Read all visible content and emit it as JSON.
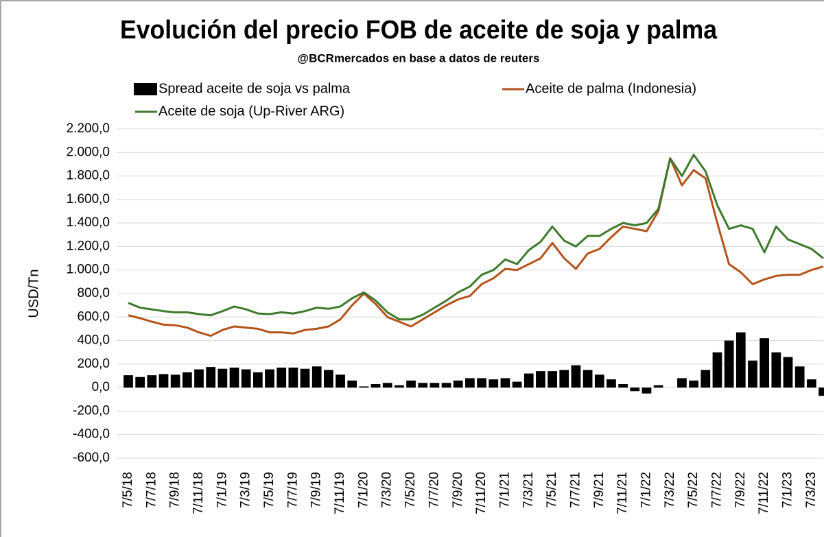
{
  "chart_data": {
    "type": "combo",
    "title": "Evolución del precio FOB de aceite de soja y palma",
    "subtitle": "@BCRmercados  en base a datos de reuters",
    "ylabel": "USD/Tn",
    "categories": [
      "7/5/18",
      null,
      "7/7/18",
      null,
      "7/9/18",
      null,
      "7/11/18",
      null,
      "7/1/19",
      null,
      "7/3/19",
      null,
      "7/5/19",
      null,
      "7/7/19",
      null,
      "7/9/19",
      null,
      "7/11/19",
      null,
      "7/1/20",
      null,
      "7/3/20",
      null,
      "7/5/20",
      null,
      "7/7/20",
      null,
      "7/9/20",
      null,
      "7/11/20",
      null,
      "7/1/21",
      null,
      "7/3/21",
      null,
      "7/5/21",
      null,
      "7/7/21",
      null,
      "7/9/21",
      null,
      "7/11/21",
      null,
      "7/1/22",
      null,
      "7/3/22",
      null,
      "7/5/22",
      null,
      "7/7/22",
      null,
      "7/9/22",
      null,
      "7/11/22",
      null,
      "7/1/23",
      null,
      "7/3/23",
      null
    ],
    "series": [
      {
        "name": "Spread aceite de soja vs palma",
        "type": "bar",
        "color": "#000000",
        "values": [
          105,
          90,
          105,
          115,
          110,
          130,
          155,
          175,
          160,
          170,
          155,
          130,
          155,
          170,
          170,
          160,
          180,
          150,
          110,
          60,
          10,
          30,
          40,
          20,
          60,
          40,
          40,
          40,
          60,
          80,
          80,
          70,
          80,
          50,
          120,
          140,
          140,
          150,
          190,
          150,
          110,
          70,
          30,
          -30,
          -50,
          20,
          0,
          80,
          60,
          150,
          300,
          400,
          470,
          230,
          420,
          300,
          260,
          180,
          70,
          -70
        ]
      },
      {
        "name": "Aceite de palma (Indonesia)",
        "type": "line",
        "color": "#b5531c",
        "values": [
          615,
          590,
          560,
          535,
          530,
          510,
          470,
          440,
          490,
          520,
          510,
          500,
          470,
          470,
          460,
          490,
          500,
          520,
          580,
          700,
          800,
          710,
          600,
          560,
          520,
          580,
          640,
          700,
          750,
          780,
          880,
          930,
          1010,
          1000,
          1050,
          1100,
          1230,
          1100,
          1010,
          1140,
          1180,
          1280,
          1370,
          1350,
          1330,
          1500,
          1950,
          1720,
          1850,
          1780,
          1400,
          1050,
          980,
          880,
          920,
          950,
          960,
          960,
          1000,
          1030
        ]
      },
      {
        "name": "Aceite de soja (Up-River ARG)",
        "type": "line",
        "color": "#3e7a2c",
        "values": [
          720,
          680,
          665,
          650,
          640,
          640,
          625,
          615,
          650,
          690,
          665,
          630,
          625,
          640,
          630,
          650,
          680,
          670,
          690,
          760,
          810,
          740,
          640,
          580,
          580,
          620,
          680,
          740,
          810,
          860,
          960,
          1000,
          1090,
          1050,
          1170,
          1240,
          1370,
          1250,
          1200,
          1290,
          1290,
          1350,
          1400,
          1380,
          1400,
          1520,
          1950,
          1800,
          1980,
          1840,
          1550,
          1350,
          1380,
          1350,
          1150,
          1370,
          1260,
          1220,
          1180,
          1100
        ]
      }
    ],
    "ylim": [
      -600,
      2200
    ],
    "yticks": [
      {
        "value": -600,
        "label": "-600,0"
      },
      {
        "value": -400,
        "label": "-400,0"
      },
      {
        "value": -200,
        "label": "-200,0"
      },
      {
        "value": 0,
        "label": "0,0"
      },
      {
        "value": 200,
        "label": "200,0"
      },
      {
        "value": 400,
        "label": "400,0"
      },
      {
        "value": 600,
        "label": "600,0"
      },
      {
        "value": 800,
        "label": "800,0"
      },
      {
        "value": 1000,
        "label": "1.000,0"
      },
      {
        "value": 1200,
        "label": "1.200,0"
      },
      {
        "value": 1400,
        "label": "1.400,0"
      },
      {
        "value": 1600,
        "label": "1.600,0"
      },
      {
        "value": 1800,
        "label": "1.800,0"
      },
      {
        "value": 2000,
        "label": "2.000,0"
      },
      {
        "value": 2200,
        "label": "2.200,0"
      }
    ],
    "grid": true
  }
}
